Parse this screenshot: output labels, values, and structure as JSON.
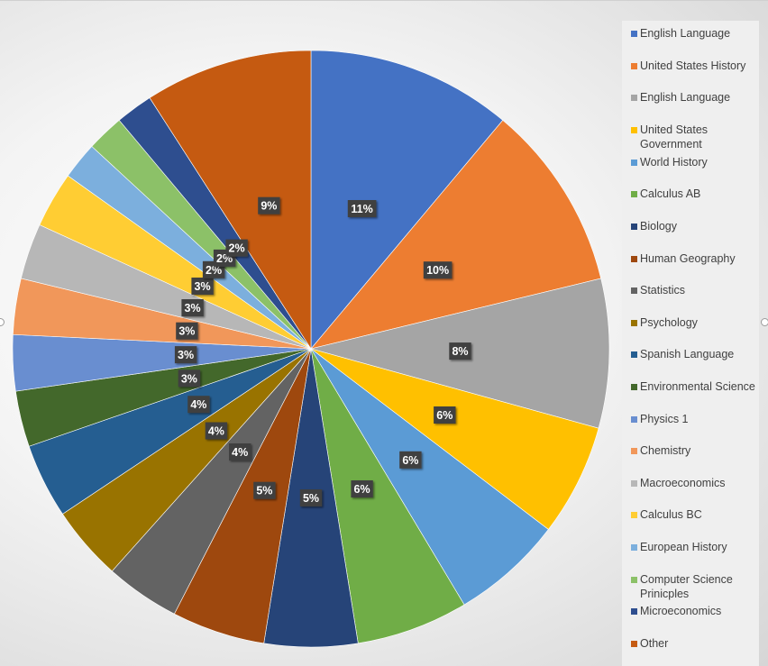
{
  "chart_data": {
    "type": "pie",
    "legend_position": "right",
    "data_labels": "percent",
    "categories": [
      "English Language",
      "United States History",
      "English Language",
      "United States Government",
      "World History",
      "Calculus AB",
      "Biology",
      "Human Geography",
      "Statistics",
      "Psychology",
      "Spanish Language",
      "Environmental Science",
      "Physics 1",
      "Chemistry",
      "Macroeconomics",
      "Calculus BC",
      "European History",
      "Computer Science Prinicples",
      "Microeconomics",
      "Other"
    ],
    "values": [
      11,
      10,
      8,
      6,
      6,
      6,
      5,
      5,
      4,
      4,
      4,
      3,
      3,
      3,
      3,
      3,
      2,
      2,
      2,
      9
    ],
    "labels": [
      "11%",
      "10%",
      "8%",
      "6%",
      "6%",
      "6%",
      "5%",
      "5%",
      "4%",
      "4%",
      "4%",
      "3%",
      "3%",
      "3%",
      "3%",
      "3%",
      "2%",
      "2%",
      "2%",
      "9%"
    ],
    "colors": [
      "#4472C4",
      "#ED7D31",
      "#A5A5A5",
      "#FFC000",
      "#5B9BD5",
      "#70AD47",
      "#264478",
      "#9E480E",
      "#636363",
      "#997300",
      "#255E91",
      "#43682B",
      "#698ED0",
      "#F1975A",
      "#B7B7B7",
      "#FFCD33",
      "#7CAFDD",
      "#8CC168",
      "#2E4E8F",
      "#C55A11"
    ]
  }
}
